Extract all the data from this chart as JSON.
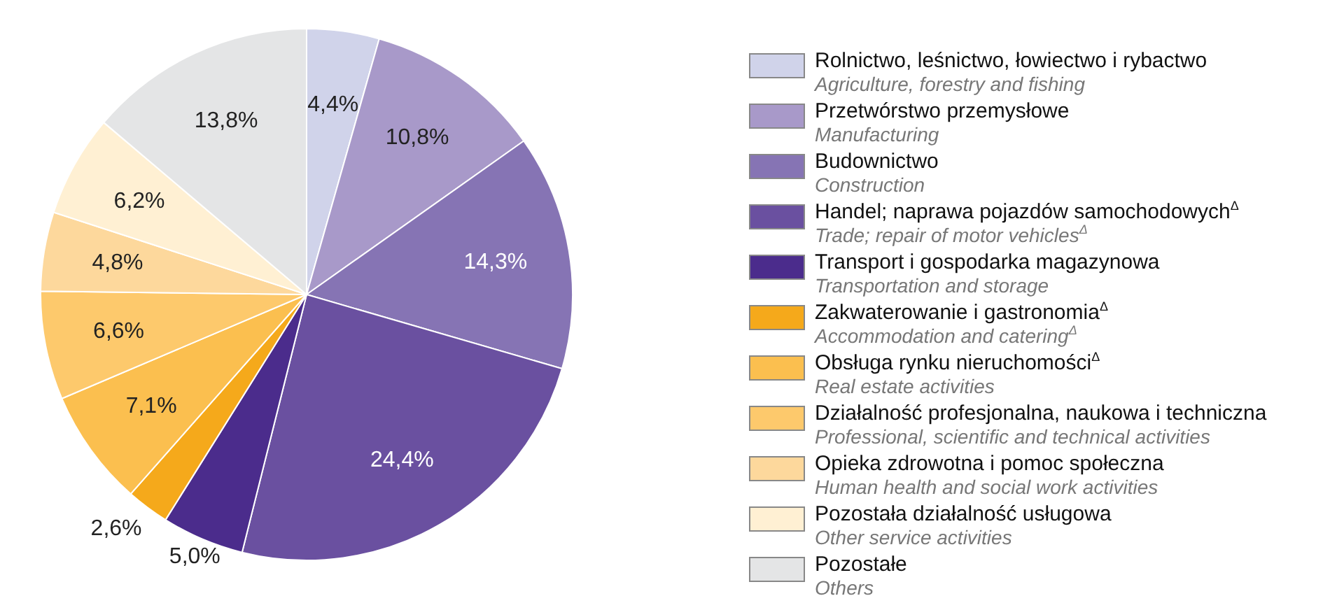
{
  "chart_data": {
    "type": "pie",
    "legend": "right",
    "value_labels": [
      "4,4%",
      "10,8%",
      "14,3%",
      "24,4%",
      "5,0%",
      "2,6%",
      "7,1%",
      "6,6%",
      "4,8%",
      "6,2%",
      "13,8%"
    ],
    "categories": [
      "Rolnictwo, leśnictwo,  łowiectwo i rybactwo\nAgriculture, forestry and fishing",
      "Przetwórstwo przemysłowe\nManufacturing",
      "Budownictwo\nConstruction",
      "Handel; naprawa pojazdów samochodowych$^{Δ}$\nTrade; repair of motor vehicles$^{Δ}$",
      "Transport i gospodarka magazynowa\nTransportation and storage",
      "Zakwaterowanie i gastronomia$^{Δ}$\nAccommodation and catering$^{Δ}$",
      "Obsługa rynku nieruchomości$^{Δ}$\nReal estate activities",
      "Działalność profesjonalna, naukowa i techniczna\nProfessional, scientific and technical activities",
      "Opieka zdrowotna i pomoc społeczna\nHuman health and social work activities",
      "Pozostała działalność usługowa\nOther service activities",
      "Pozostałe\nOthers"
    ],
    "values": [
      4.4,
      10.8,
      14.3,
      24.4,
      5.0,
      2.6,
      7.1,
      6.6,
      4.8,
      6.2,
      13.8
    ],
    "colors": [
      "#d0d3ea",
      "#a899c9",
      "#8674b4",
      "#6a50a0",
      "#4b2c8c",
      "#f5a91b",
      "#fbbf4f",
      "#fdc96c",
      "#fdd89c",
      "#fff0d3",
      "#e4e5e6"
    ]
  }
}
